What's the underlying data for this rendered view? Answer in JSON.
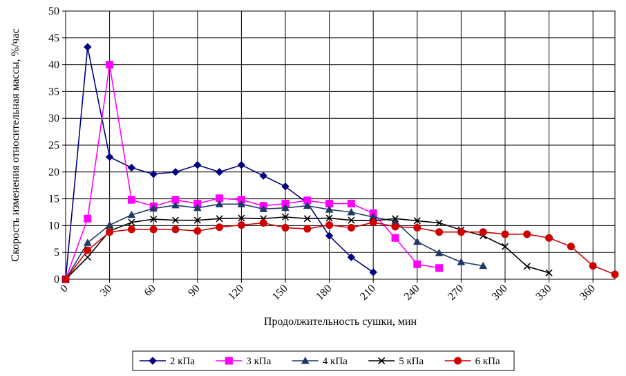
{
  "chart_data": {
    "type": "line",
    "title": "",
    "xlabel": "Продолжительность сушки, мин",
    "ylabel": "Скорость изменения относительная массы, %/час",
    "xlim": [
      0,
      375
    ],
    "ylim": [
      0,
      50
    ],
    "x_ticks": [
      0,
      30,
      60,
      90,
      120,
      150,
      180,
      210,
      240,
      270,
      300,
      330,
      360
    ],
    "y_ticks": [
      0,
      5,
      10,
      15,
      20,
      25,
      30,
      35,
      40,
      45,
      50
    ],
    "grid": true,
    "legend_position": "bottom",
    "series": [
      {
        "name": "2 кПа",
        "color": "#000080",
        "marker": "diamond",
        "x": [
          0,
          15,
          30,
          45,
          60,
          75,
          90,
          105,
          120,
          135,
          150,
          165,
          180,
          195,
          210
        ],
        "y": [
          0,
          43.3,
          22.8,
          20.8,
          19.6,
          20,
          21.3,
          20,
          21.3,
          19.3,
          17.3,
          14.2,
          8.1,
          4.1,
          1.3
        ]
      },
      {
        "name": "3 кПа",
        "color": "#FF00FF",
        "marker": "square",
        "x": [
          0,
          15,
          30,
          45,
          60,
          75,
          90,
          105,
          120,
          135,
          150,
          165,
          180,
          195,
          210,
          225,
          240,
          255
        ],
        "y": [
          0,
          11.3,
          40,
          14.8,
          13.6,
          14.8,
          14.1,
          15.1,
          14.8,
          13.7,
          14.1,
          14.7,
          14.1,
          14.1,
          12.3,
          7.7,
          2.8,
          2.1
        ]
      },
      {
        "name": "4 кПа",
        "color": "#1F3864",
        "marker": "triangle",
        "x": [
          0,
          15,
          30,
          45,
          60,
          75,
          90,
          105,
          120,
          135,
          150,
          165,
          180,
          195,
          210,
          225,
          240,
          255,
          270,
          285
        ],
        "y": [
          0,
          6.8,
          10.1,
          12,
          13.2,
          13.8,
          13.3,
          14,
          14,
          13.1,
          13.3,
          13.7,
          13,
          12.5,
          11.6,
          10.8,
          7,
          4.9,
          3.2,
          2.5
        ]
      },
      {
        "name": "5 кПа",
        "color": "#000000",
        "marker": "x",
        "x": [
          0,
          15,
          30,
          45,
          60,
          75,
          90,
          105,
          120,
          135,
          150,
          165,
          180,
          195,
          210,
          225,
          240,
          255,
          270,
          285,
          300,
          315,
          330
        ],
        "y": [
          0,
          4.1,
          9,
          10.6,
          11.2,
          11,
          11,
          11.3,
          11.4,
          11.3,
          11.6,
          11.3,
          11.4,
          11,
          10.9,
          11.3,
          10.9,
          10.5,
          9.2,
          8.1,
          6.1,
          2.4,
          1.2
        ]
      },
      {
        "name": "6 кПа",
        "color": "#D00000",
        "marker": "circle",
        "x": [
          0,
          15,
          30,
          45,
          60,
          75,
          90,
          105,
          120,
          135,
          150,
          165,
          180,
          195,
          210,
          225,
          240,
          255,
          270,
          285,
          300,
          315,
          330,
          345,
          360,
          375
        ],
        "y": [
          0,
          5.4,
          8.8,
          9.3,
          9.3,
          9.3,
          9,
          9.7,
          10.1,
          10.5,
          9.6,
          9.4,
          10.1,
          9.6,
          10.6,
          9.8,
          9.6,
          8.8,
          8.8,
          8.8,
          8.4,
          8.4,
          7.7,
          6.1,
          2.5,
          0.9
        ]
      }
    ]
  }
}
